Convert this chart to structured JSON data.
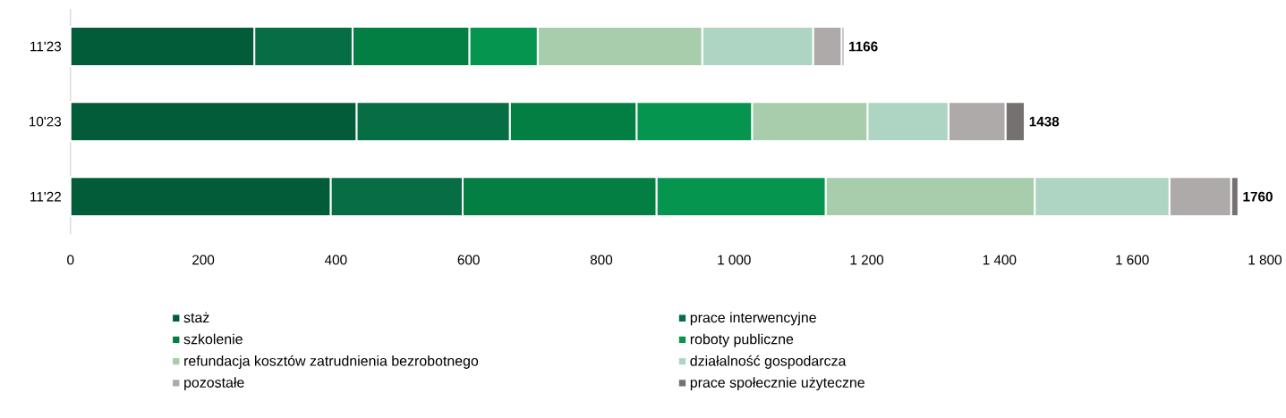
{
  "chart_data": {
    "type": "bar",
    "orientation": "horizontal",
    "stacked": true,
    "categories": [
      "11'23",
      "10'23",
      "11'22"
    ],
    "series": [
      {
        "name": "staż",
        "color": "#035c39",
        "values": [
          277,
          431,
          392
        ]
      },
      {
        "name": "prace interwencyjne",
        "color": "#066d45",
        "values": [
          148,
          231,
          199
        ]
      },
      {
        "name": "szkolenie",
        "color": "#047f43",
        "values": [
          176,
          191,
          292
        ]
      },
      {
        "name": "roboty publiczne",
        "color": "#05954f",
        "values": [
          103,
          174,
          255
        ]
      },
      {
        "name": "refundacja kosztów zatrudnienia bezrobotnego",
        "color": "#a8cdad",
        "values": [
          248,
          174,
          315
        ]
      },
      {
        "name": "działalność gospodarcza",
        "color": "#aed5c3",
        "values": [
          167,
          122,
          203
        ]
      },
      {
        "name": "pozostałe",
        "color": "#aeaaaa",
        "values": [
          43,
          86,
          93
        ]
      },
      {
        "name": "prace społecznie użyteczne",
        "color": "#767171",
        "values": [
          4,
          29,
          11
        ]
      }
    ],
    "totals": [
      "1166",
      "1438",
      "1760"
    ],
    "xlim": [
      0,
      1800
    ],
    "xticks": [
      0,
      200,
      400,
      600,
      800,
      {
        "value": 1000,
        "label": "1 000"
      },
      {
        "value": 1200,
        "label": "1 200"
      },
      {
        "value": 1400,
        "label": "1 400"
      },
      {
        "value": 1600,
        "label": "1 600"
      },
      {
        "value": 1800,
        "label": "1 800"
      }
    ],
    "legend": "bottom"
  }
}
